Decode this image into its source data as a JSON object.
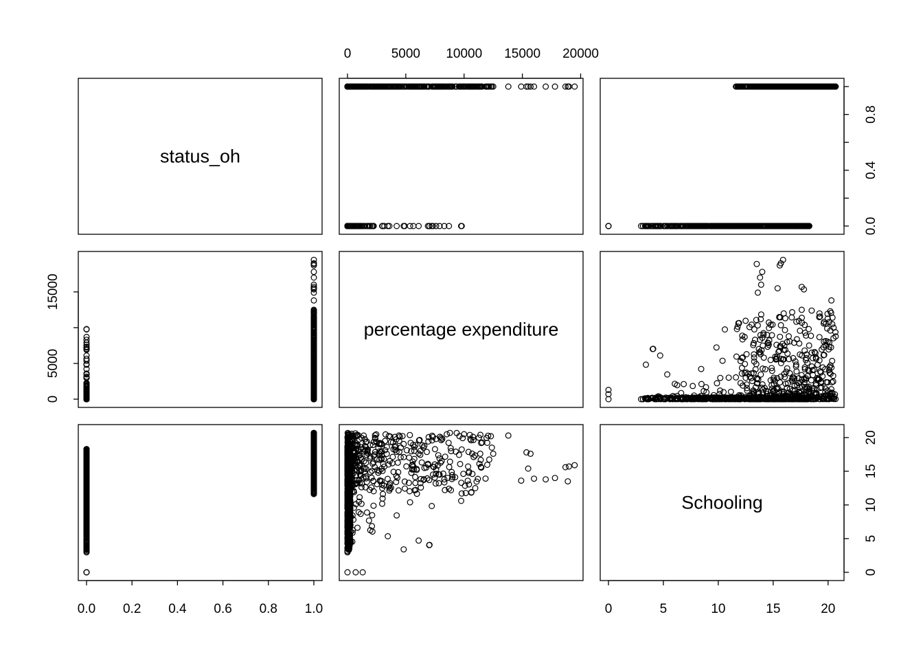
{
  "chart_data": {
    "type": "scatter",
    "variables": [
      {
        "name": "status_oh",
        "lim": [
          0,
          1
        ],
        "ticks": [
          0.0,
          0.2,
          0.4,
          0.6,
          0.8,
          1.0
        ],
        "tick_labels": [
          "0.0",
          "0.2",
          "0.4",
          "0.6",
          "0.8",
          "1.0"
        ],
        "right_ticks": [
          0.0,
          0.2,
          0.4,
          0.6,
          0.8,
          1.0
        ],
        "right_tick_labels": [
          "0.0",
          "",
          "0.4",
          "",
          "0.8",
          ""
        ]
      },
      {
        "name": "percentage expenditure",
        "lim": [
          0,
          19500
        ],
        "ticks": [
          0,
          5000,
          10000,
          15000,
          20000
        ],
        "tick_labels": [
          "0",
          "5000",
          "10000",
          "15000",
          "20000"
        ],
        "left_ticks": [
          0,
          5000,
          10000,
          15000
        ],
        "left_tick_labels": [
          "0",
          "5000",
          "",
          "15000"
        ]
      },
      {
        "name": "Schooling",
        "lim": [
          0,
          20.7
        ],
        "ticks": [
          0,
          5,
          10,
          15,
          20
        ],
        "tick_labels": [
          "0",
          "5",
          "10",
          "15",
          "20"
        ]
      }
    ],
    "groups": [
      {
        "status": 0,
        "expenditure_range": [
          0,
          9800
        ],
        "schooling_range": [
          2.9,
          18.3
        ],
        "schooling_outliers": [
          0
        ]
      },
      {
        "status": 1,
        "expenditure_range": [
          0,
          19480
        ],
        "schooling_range": [
          11.6,
          20.7
        ]
      }
    ],
    "grid": false,
    "legend": "none"
  }
}
